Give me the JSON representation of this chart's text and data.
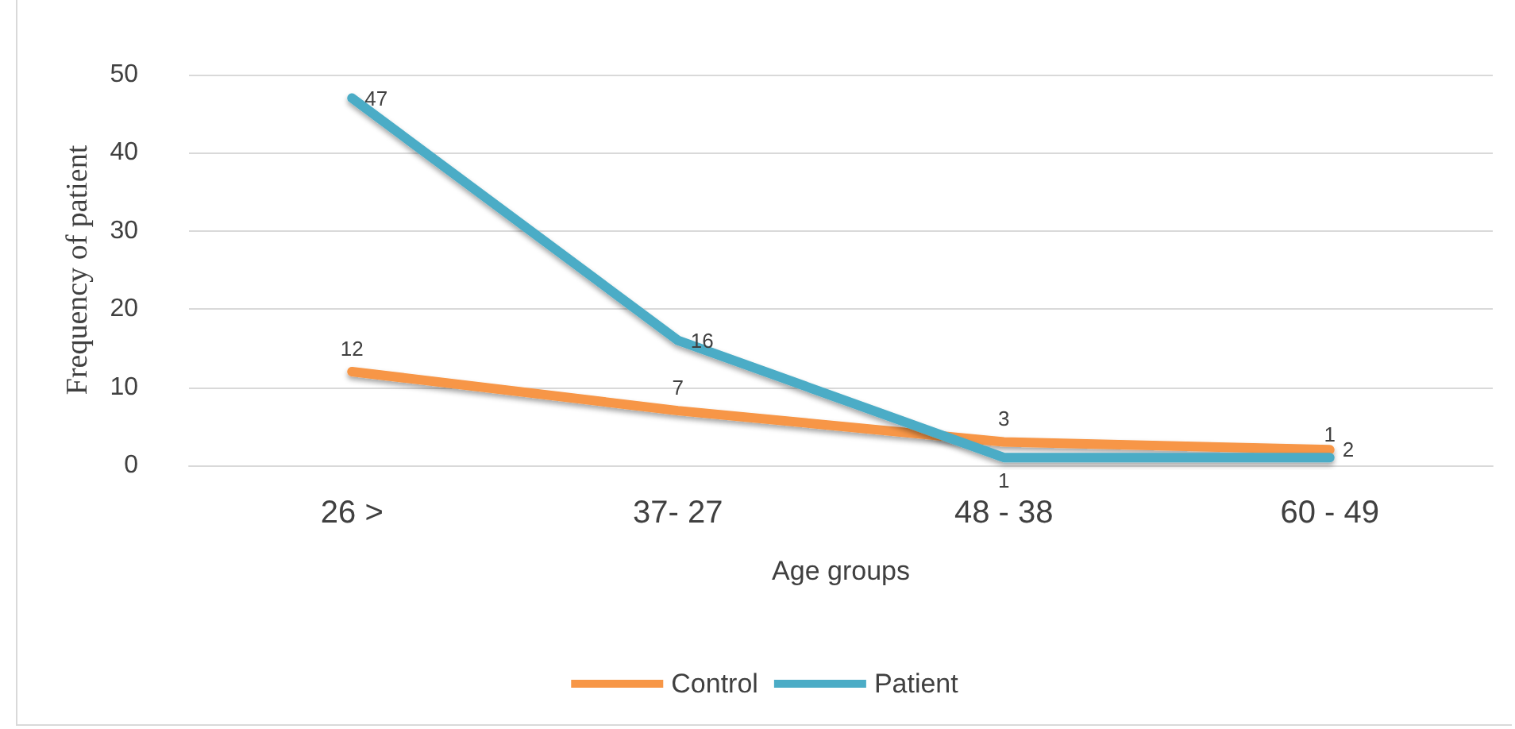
{
  "chart_data": {
    "type": "line",
    "xlabel": "Age groups",
    "ylabel": "Frequency of patient",
    "categories": [
      "26 >",
      "37- 27",
      "48 - 38",
      "60 - 49"
    ],
    "series": [
      {
        "name": "Control",
        "color": "#f79646",
        "values": [
          12,
          7,
          3,
          2
        ]
      },
      {
        "name": "Patient",
        "color": "#4bacc6",
        "values": [
          47,
          16,
          1,
          1
        ]
      }
    ],
    "ylim": [
      0,
      50
    ],
    "yticks": [
      0,
      10,
      20,
      30,
      40,
      50
    ],
    "grid": "y",
    "legend": "bottom",
    "marker": "none",
    "line_style": "solid",
    "data_labels": true
  }
}
